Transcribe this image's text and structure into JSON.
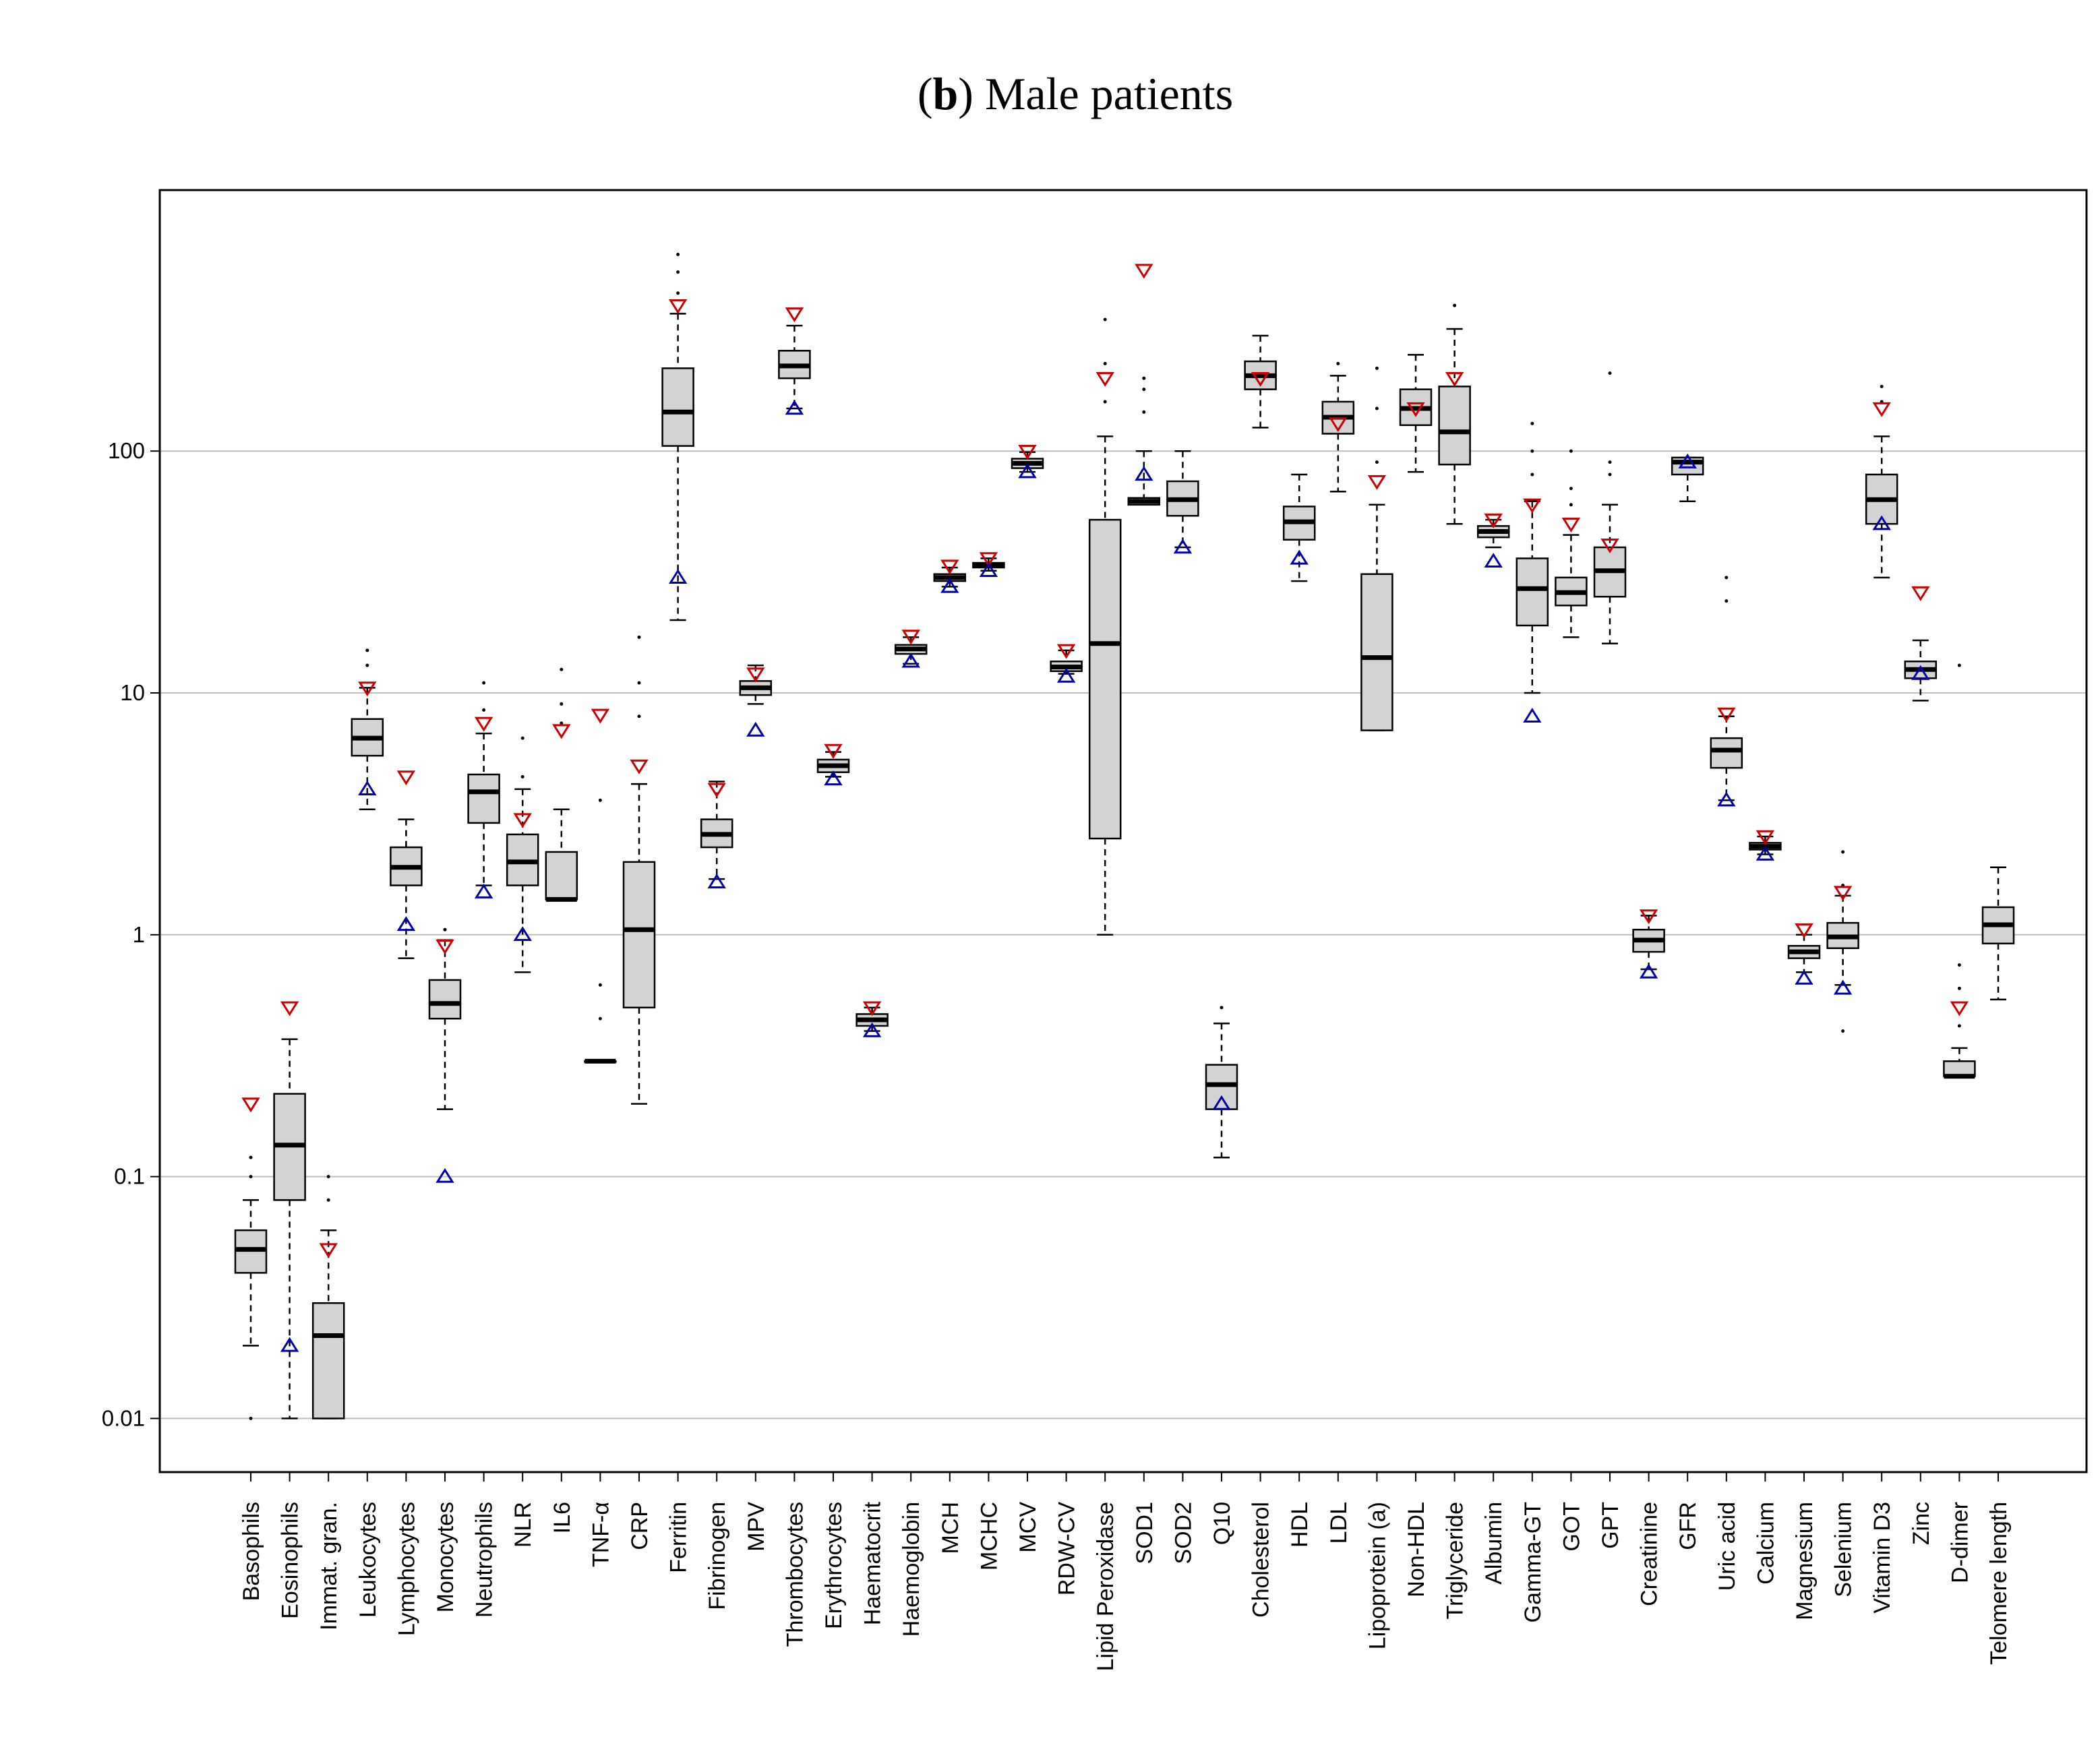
{
  "chart_data": {
    "type": "box",
    "title": {
      "open": "(",
      "bold": "b",
      "rest": ") Male patients"
    },
    "xlabel": "",
    "ylabel": "",
    "yscale": "log",
    "ylim": [
      0.006,
      1200
    ],
    "yticks": [
      {
        "value": 0.01,
        "label": "0.01"
      },
      {
        "value": 0.1,
        "label": "0.1"
      },
      {
        "value": 1,
        "label": "1"
      },
      {
        "value": 10,
        "label": "10"
      },
      {
        "value": 100,
        "label": "100"
      }
    ],
    "grid": "horizontal",
    "legend": "none",
    "colors": {
      "box_fill": "#d3d3d3",
      "box_border": "#000000",
      "grid": "#bebebe",
      "upper_marker": "#cc0000",
      "lower_marker": "#0000aa"
    },
    "series": [
      {
        "name": "Basophils",
        "whisker_low": 0.02,
        "q1": 0.04,
        "median": 0.05,
        "q3": 0.06,
        "whisker_high": 0.08,
        "outliers": [
          0.01,
          0.1,
          0.12
        ],
        "ref_upper": 0.2,
        "ref_lower": null
      },
      {
        "name": "Eosinophils",
        "whisker_low": 0.01,
        "q1": 0.08,
        "median": 0.135,
        "q3": 0.22,
        "whisker_high": 0.37,
        "outliers": [],
        "ref_upper": 0.5,
        "ref_lower": 0.02
      },
      {
        "name": "Immat. gran.",
        "whisker_low": 0.01,
        "q1": 0.01,
        "median": 0.022,
        "q3": 0.03,
        "whisker_high": 0.06,
        "outliers": [
          0.08,
          0.1
        ],
        "ref_upper": 0.05,
        "ref_lower": null
      },
      {
        "name": "Leukocytes",
        "whisker_low": 3.3,
        "q1": 5.5,
        "median": 6.5,
        "q3": 7.8,
        "whisker_high": 10.5,
        "outliers": [
          13,
          15
        ],
        "ref_upper": 10.5,
        "ref_lower": 4
      },
      {
        "name": "Lymphocytes",
        "whisker_low": 0.8,
        "q1": 1.6,
        "median": 1.9,
        "q3": 2.3,
        "whisker_high": 3,
        "outliers": [],
        "ref_upper": 4.5,
        "ref_lower": 1.1
      },
      {
        "name": "Monocytes",
        "whisker_low": 0.19,
        "q1": 0.45,
        "median": 0.52,
        "q3": 0.65,
        "whisker_high": 0.95,
        "outliers": [
          1.05
        ],
        "ref_upper": 0.9,
        "ref_lower": 0.1
      },
      {
        "name": "Neutrophils",
        "whisker_low": 1.6,
        "q1": 2.9,
        "median": 3.9,
        "q3": 4.6,
        "whisker_high": 6.8,
        "outliers": [
          8.5,
          11
        ],
        "ref_upper": 7.5,
        "ref_lower": 1.5
      },
      {
        "name": "NLR",
        "whisker_low": 0.7,
        "q1": 1.6,
        "median": 2,
        "q3": 2.6,
        "whisker_high": 4,
        "outliers": [
          4.5,
          6.5
        ],
        "ref_upper": 3,
        "ref_lower": 1
      },
      {
        "name": "IL6",
        "whisker_low": 1.4,
        "q1": 1.4,
        "median": 1.4,
        "q3": 2.2,
        "whisker_high": 3.3,
        "outliers": [
          7.5,
          9,
          12.5
        ],
        "ref_upper": 7,
        "ref_lower": null
      },
      {
        "name": "TNF-α",
        "whisker_low": 0.3,
        "q1": 0.3,
        "median": 0.3,
        "q3": 0.3,
        "whisker_high": 0.3,
        "outliers": [
          0.45,
          0.62,
          3.6
        ],
        "ref_upper": 8.1,
        "ref_lower": null
      },
      {
        "name": "CRP",
        "whisker_low": 0.2,
        "q1": 0.5,
        "median": 1.05,
        "q3": 2,
        "whisker_high": 4.2,
        "outliers": [
          8,
          11,
          17
        ],
        "ref_upper": 5,
        "ref_lower": null
      },
      {
        "name": "Ferritin",
        "whisker_low": 20,
        "q1": 105,
        "median": 145,
        "q3": 220,
        "whisker_high": 370,
        "outliers": [
          450,
          550,
          650
        ],
        "ref_upper": 400,
        "ref_lower": 30
      },
      {
        "name": "Fibrinogen",
        "whisker_low": 1.7,
        "q1": 2.3,
        "median": 2.6,
        "q3": 3,
        "whisker_high": 4.3,
        "outliers": [],
        "ref_upper": 4,
        "ref_lower": 1.65
      },
      {
        "name": "MPV",
        "whisker_low": 9,
        "q1": 9.8,
        "median": 10.5,
        "q3": 11.2,
        "whisker_high": 13,
        "outliers": [],
        "ref_upper": 12,
        "ref_lower": 7
      },
      {
        "name": "Thrombocytes",
        "whisker_low": 150,
        "q1": 200,
        "median": 225,
        "q3": 260,
        "whisker_high": 330,
        "outliers": [],
        "ref_upper": 370,
        "ref_lower": 150
      },
      {
        "name": "Erythrocytes",
        "whisker_low": 4.5,
        "q1": 4.7,
        "median": 5,
        "q3": 5.3,
        "whisker_high": 5.7,
        "outliers": [],
        "ref_upper": 5.8,
        "ref_lower": 4.4
      },
      {
        "name": "Haematocrit",
        "whisker_low": 0.4,
        "q1": 0.42,
        "median": 0.445,
        "q3": 0.47,
        "whisker_high": 0.5,
        "outliers": [],
        "ref_upper": 0.5,
        "ref_lower": 0.4
      },
      {
        "name": "Haemoglobin",
        "whisker_low": 13.2,
        "q1": 14.5,
        "median": 15.2,
        "q3": 15.8,
        "whisker_high": 17,
        "outliers": [],
        "ref_upper": 17.2,
        "ref_lower": 13.5
      },
      {
        "name": "MCH",
        "whisker_low": 27.5,
        "q1": 29,
        "median": 30,
        "q3": 31,
        "whisker_high": 33,
        "outliers": [],
        "ref_upper": 33.5,
        "ref_lower": 27.5
      },
      {
        "name": "MCHC",
        "whisker_low": 32,
        "q1": 33,
        "median": 33.8,
        "q3": 34.5,
        "whisker_high": 36,
        "outliers": [],
        "ref_upper": 36,
        "ref_lower": 32
      },
      {
        "name": "MCV",
        "whisker_low": 82,
        "q1": 85,
        "median": 89,
        "q3": 93,
        "whisker_high": 99,
        "outliers": [],
        "ref_upper": 100,
        "ref_lower": 82
      },
      {
        "name": "RDW-CV",
        "whisker_low": 12,
        "q1": 12.3,
        "median": 12.8,
        "q3": 13.5,
        "whisker_high": 15,
        "outliers": [],
        "ref_upper": 15,
        "ref_lower": 11.7
      },
      {
        "name": "Lipid Peroxidase",
        "whisker_low": 1,
        "q1": 2.5,
        "median": 16,
        "q3": 52,
        "whisker_high": 115,
        "outliers": [
          160,
          230,
          350
        ],
        "ref_upper": 200,
        "ref_lower": null
      },
      {
        "name": "SOD1",
        "whisker_low": 60,
        "q1": 60,
        "median": 62,
        "q3": 64,
        "whisker_high": 100,
        "outliers": [
          145,
          180,
          200
        ],
        "ref_upper": 560,
        "ref_lower": 80
      },
      {
        "name": "SOD2",
        "whisker_low": 40,
        "q1": 54,
        "median": 63,
        "q3": 75,
        "whisker_high": 100,
        "outliers": [],
        "ref_upper": null,
        "ref_lower": 40
      },
      {
        "name": "Q10",
        "whisker_low": 0.12,
        "q1": 0.19,
        "median": 0.24,
        "q3": 0.29,
        "whisker_high": 0.43,
        "outliers": [
          0.5
        ],
        "ref_upper": null,
        "ref_lower": 0.2
      },
      {
        "name": "Cholesterol",
        "whisker_low": 125,
        "q1": 180,
        "median": 205,
        "q3": 235,
        "whisker_high": 300,
        "outliers": [],
        "ref_upper": 200,
        "ref_lower": null
      },
      {
        "name": "HDL",
        "whisker_low": 29,
        "q1": 43,
        "median": 51,
        "q3": 59,
        "whisker_high": 80,
        "outliers": [],
        "ref_upper": null,
        "ref_lower": 36
      },
      {
        "name": "LDL",
        "whisker_low": 68,
        "q1": 118,
        "median": 138,
        "q3": 160,
        "whisker_high": 205,
        "outliers": [
          230
        ],
        "ref_upper": 130,
        "ref_lower": null
      },
      {
        "name": "Lipoprotein (a)",
        "whisker_low": 7,
        "q1": 7,
        "median": 14,
        "q3": 31,
        "whisker_high": 60,
        "outliers": [
          90,
          150,
          220
        ],
        "ref_upper": 75,
        "ref_lower": null
      },
      {
        "name": "Non-HDL",
        "whisker_low": 82,
        "q1": 128,
        "median": 150,
        "q3": 180,
        "whisker_high": 250,
        "outliers": [],
        "ref_upper": 150,
        "ref_lower": null
      },
      {
        "name": "Triglyceride",
        "whisker_low": 50,
        "q1": 88,
        "median": 120,
        "q3": 185,
        "whisker_high": 320,
        "outliers": [
          400
        ],
        "ref_upper": 200,
        "ref_lower": null
      },
      {
        "name": "Albumin",
        "whisker_low": 40,
        "q1": 44,
        "median": 46.5,
        "q3": 49,
        "whisker_high": 52,
        "outliers": [],
        "ref_upper": 52,
        "ref_lower": 35
      },
      {
        "name": "Gamma-GT",
        "whisker_low": 10,
        "q1": 19,
        "median": 27,
        "q3": 36,
        "whisker_high": 62,
        "outliers": [
          80,
          100,
          130
        ],
        "ref_upper": 60,
        "ref_lower": 8
      },
      {
        "name": "GOT",
        "whisker_low": 17,
        "q1": 23,
        "median": 26,
        "q3": 30,
        "whisker_high": 45,
        "outliers": [
          60,
          70,
          100
        ],
        "ref_upper": 50,
        "ref_lower": null
      },
      {
        "name": "GPT",
        "whisker_low": 16,
        "q1": 25,
        "median": 32,
        "q3": 40,
        "whisker_high": 60,
        "outliers": [
          80,
          90,
          210
        ],
        "ref_upper": 41,
        "ref_lower": null
      },
      {
        "name": "Creatinine",
        "whisker_low": 0.72,
        "q1": 0.85,
        "median": 0.95,
        "q3": 1.05,
        "whisker_high": 1.2,
        "outliers": [],
        "ref_upper": 1.2,
        "ref_lower": 0.7
      },
      {
        "name": "GFR",
        "whisker_low": 62,
        "q1": 80,
        "median": 90,
        "q3": 94,
        "whisker_high": 94,
        "outliers": [],
        "ref_upper": null,
        "ref_lower": 90
      },
      {
        "name": "Uric acid",
        "whisker_low": 3.6,
        "q1": 4.9,
        "median": 5.8,
        "q3": 6.5,
        "whisker_high": 8,
        "outliers": [
          24,
          30
        ],
        "ref_upper": 8.2,
        "ref_lower": 3.6
      },
      {
        "name": "Calcium",
        "whisker_low": 2.15,
        "q1": 2.25,
        "median": 2.32,
        "q3": 2.4,
        "whisker_high": 2.55,
        "outliers": [],
        "ref_upper": 2.55,
        "ref_lower": 2.15
      },
      {
        "name": "Magnesium",
        "whisker_low": 0.7,
        "q1": 0.8,
        "median": 0.85,
        "q3": 0.9,
        "whisker_high": 1,
        "outliers": [],
        "ref_upper": 1.05,
        "ref_lower": 0.66
      },
      {
        "name": "Selenium",
        "whisker_low": 0.62,
        "q1": 0.88,
        "median": 0.98,
        "q3": 1.12,
        "whisker_high": 1.45,
        "outliers": [
          0.4,
          1.6,
          2.2
        ],
        "ref_upper": 1.5,
        "ref_lower": 0.6
      },
      {
        "name": "Vitamin D3",
        "whisker_low": 30,
        "q1": 50,
        "median": 63,
        "q3": 80,
        "whisker_high": 115,
        "outliers": [
          160,
          185
        ],
        "ref_upper": 150,
        "ref_lower": 50
      },
      {
        "name": "Zinc",
        "whisker_low": 9.3,
        "q1": 11.5,
        "median": 12.5,
        "q3": 13.5,
        "whisker_high": 16.5,
        "outliers": [],
        "ref_upper": 26,
        "ref_lower": 12
      },
      {
        "name": "D-dimer",
        "whisker_low": 0.26,
        "q1": 0.26,
        "median": 0.26,
        "q3": 0.3,
        "whisker_high": 0.34,
        "outliers": [
          0.42,
          0.6,
          0.75,
          13
        ],
        "ref_upper": 0.5,
        "ref_lower": null
      },
      {
        "name": "Telomere length",
        "whisker_low": 0.54,
        "q1": 0.92,
        "median": 1.1,
        "q3": 1.3,
        "whisker_high": 1.9,
        "outliers": [],
        "ref_upper": null,
        "ref_lower": null
      }
    ]
  }
}
